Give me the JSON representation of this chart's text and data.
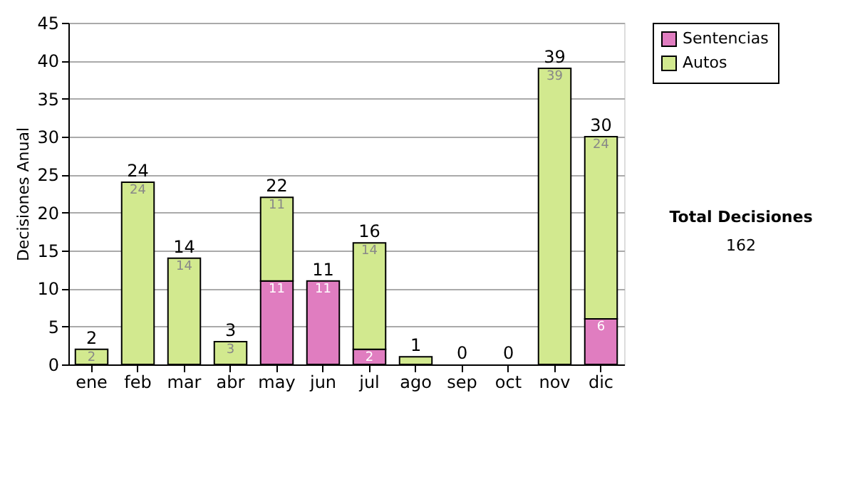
{
  "chart_data": {
    "type": "bar",
    "stacked": true,
    "ylabel": "Decisiones Anual",
    "categories": [
      "ene",
      "feb",
      "mar",
      "abr",
      "may",
      "jun",
      "jul",
      "ago",
      "sep",
      "oct",
      "nov",
      "dic"
    ],
    "series": [
      {
        "name": "Sentencias",
        "color": "#e07dc0",
        "values": [
          0,
          0,
          0,
          0,
          11,
          11,
          2,
          0,
          0,
          0,
          0,
          6
        ],
        "value_labels": [
          null,
          null,
          null,
          null,
          "11",
          "11",
          "2",
          null,
          null,
          null,
          null,
          "6"
        ]
      },
      {
        "name": "Autos",
        "color": "#d2e98f",
        "values": [
          2,
          24,
          14,
          3,
          11,
          0,
          14,
          1,
          0,
          0,
          39,
          24
        ],
        "value_labels": [
          "2",
          "24",
          "14",
          "3",
          "11",
          null,
          "14",
          null,
          null,
          null,
          "39",
          "24"
        ]
      }
    ],
    "totals": [
      "2",
      "24",
      "14",
      "3",
      "22",
      "11",
      "16",
      "1",
      "0",
      "0",
      "39",
      "30"
    ],
    "ylim": [
      0,
      45
    ],
    "yticks": [
      0,
      5,
      10,
      15,
      20,
      25,
      30,
      35,
      40,
      45
    ],
    "grid": "y",
    "legend": "right",
    "annotations": [
      "Total Decisiones",
      "162"
    ]
  }
}
